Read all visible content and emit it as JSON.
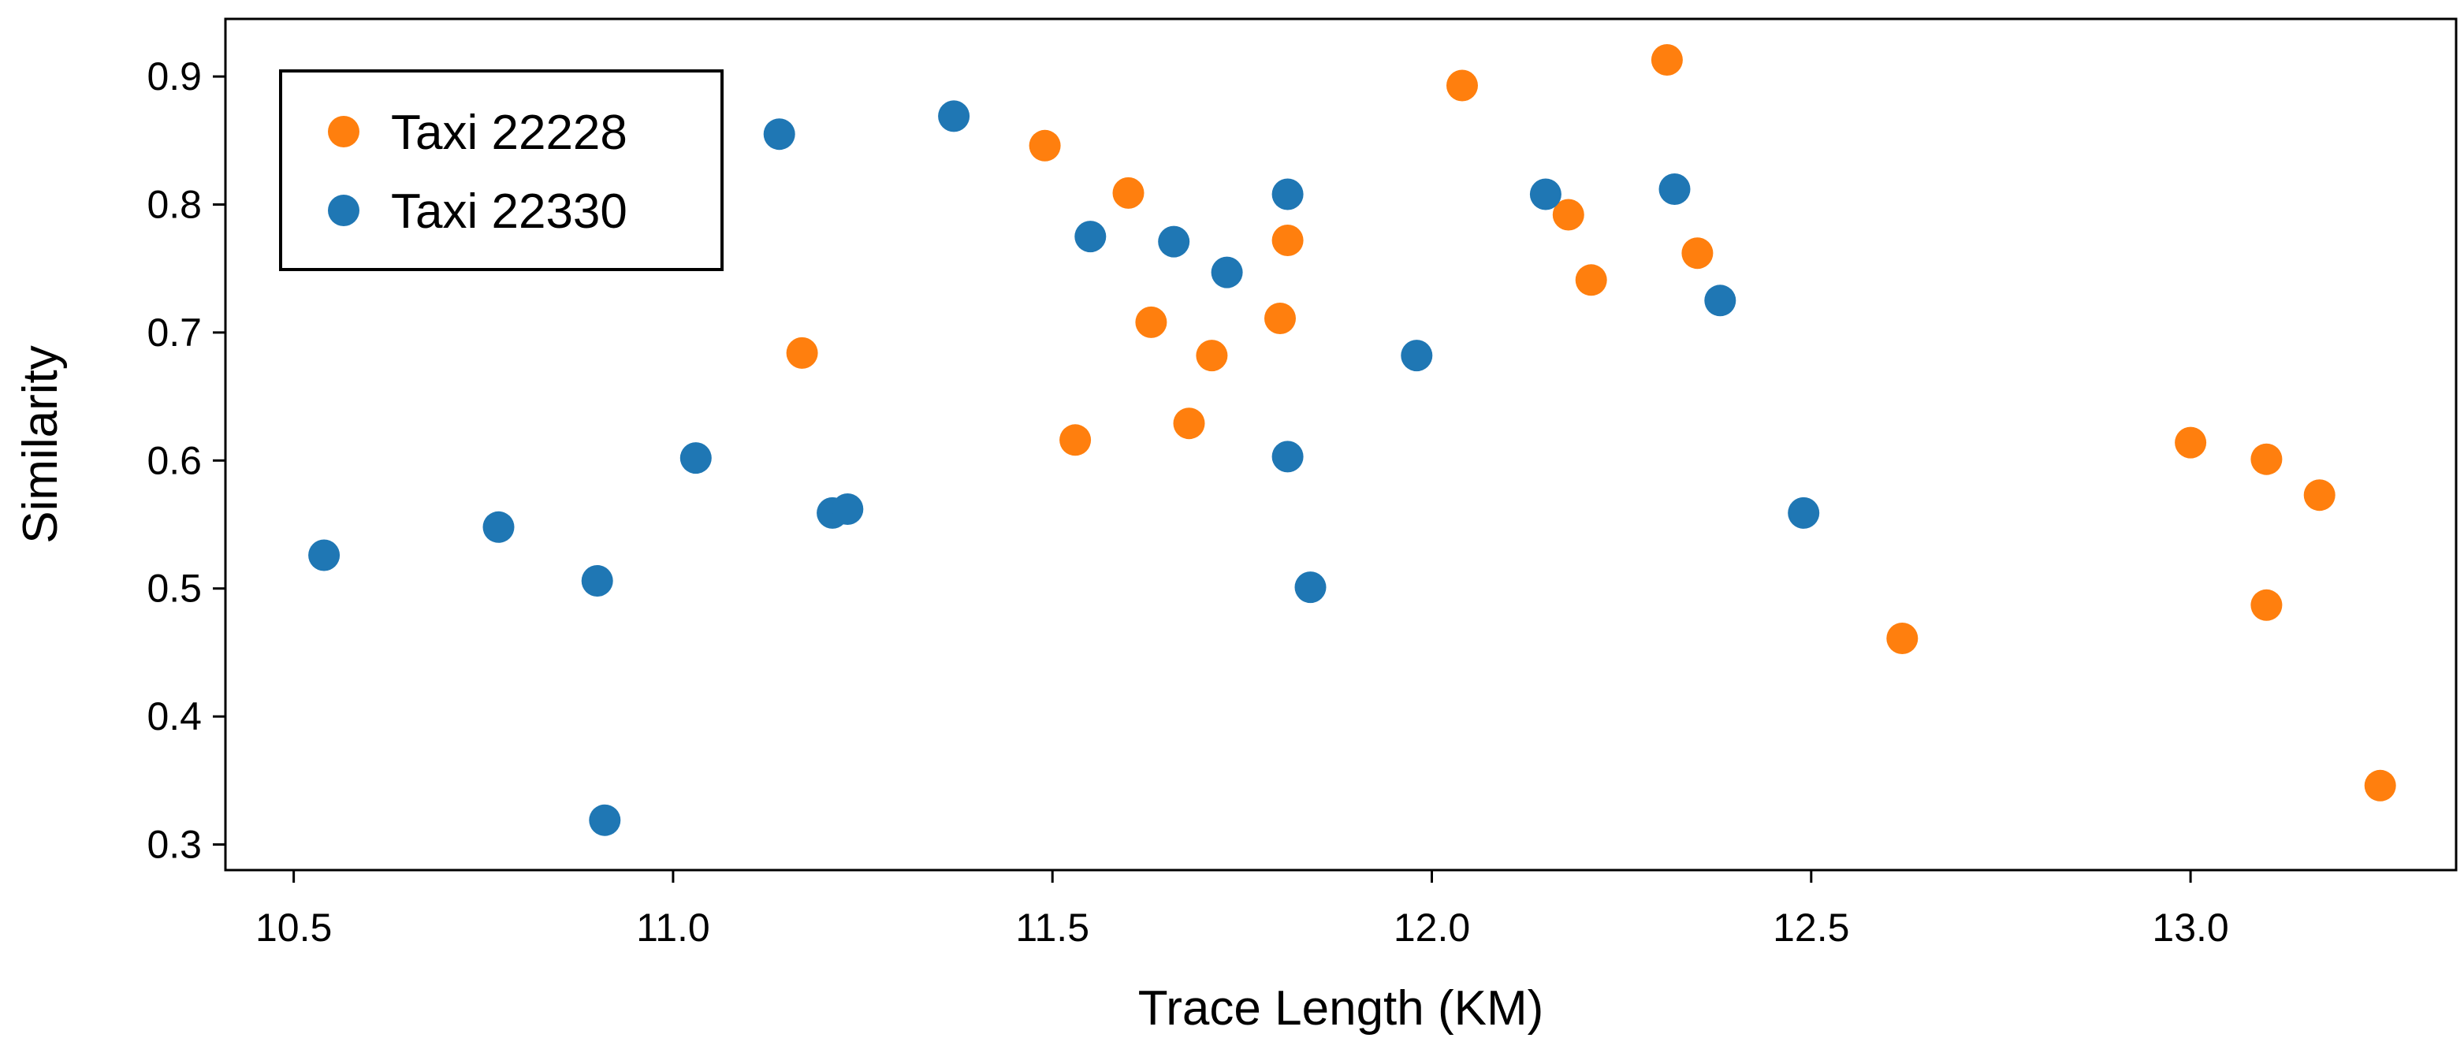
{
  "chart_data": {
    "type": "scatter",
    "title": "",
    "xlabel": "Trace Length (KM)",
    "ylabel": "Similarity",
    "xlim": [
      10.41,
      13.35
    ],
    "ylim": [
      0.28,
      0.945
    ],
    "xticks": [
      10.5,
      11.0,
      11.5,
      12.0,
      12.5,
      13.0
    ],
    "xtick_labels": [
      "10.5",
      "11.0",
      "11.5",
      "12.0",
      "12.5",
      "13.0"
    ],
    "yticks": [
      0.3,
      0.4,
      0.5,
      0.6,
      0.7,
      0.8,
      0.9
    ],
    "ytick_labels": [
      "0.3",
      "0.4",
      "0.5",
      "0.6",
      "0.7",
      "0.8",
      "0.9"
    ],
    "grid": false,
    "legend_position": "top-left",
    "series": [
      {
        "name": "Taxi 22228",
        "color": "#ff7f0e",
        "points": [
          {
            "x": 11.17,
            "y": 0.684
          },
          {
            "x": 11.49,
            "y": 0.846
          },
          {
            "x": 11.53,
            "y": 0.616
          },
          {
            "x": 11.6,
            "y": 0.809
          },
          {
            "x": 11.63,
            "y": 0.708
          },
          {
            "x": 11.68,
            "y": 0.629
          },
          {
            "x": 11.71,
            "y": 0.682
          },
          {
            "x": 11.8,
            "y": 0.711
          },
          {
            "x": 11.81,
            "y": 0.772
          },
          {
            "x": 12.04,
            "y": 0.893
          },
          {
            "x": 12.18,
            "y": 0.792
          },
          {
            "x": 12.21,
            "y": 0.741
          },
          {
            "x": 12.31,
            "y": 0.913
          },
          {
            "x": 12.35,
            "y": 0.762
          },
          {
            "x": 12.62,
            "y": 0.461
          },
          {
            "x": 13.0,
            "y": 0.614
          },
          {
            "x": 13.1,
            "y": 0.601
          },
          {
            "x": 13.1,
            "y": 0.487
          },
          {
            "x": 13.17,
            "y": 0.573
          },
          {
            "x": 13.25,
            "y": 0.346
          }
        ]
      },
      {
        "name": "Taxi 22330",
        "color": "#1f77b4",
        "points": [
          {
            "x": 10.54,
            "y": 0.526
          },
          {
            "x": 10.77,
            "y": 0.548
          },
          {
            "x": 10.9,
            "y": 0.506
          },
          {
            "x": 10.91,
            "y": 0.319
          },
          {
            "x": 11.03,
            "y": 0.602
          },
          {
            "x": 11.14,
            "y": 0.855
          },
          {
            "x": 11.21,
            "y": 0.559
          },
          {
            "x": 11.23,
            "y": 0.562
          },
          {
            "x": 11.37,
            "y": 0.869
          },
          {
            "x": 11.55,
            "y": 0.775
          },
          {
            "x": 11.66,
            "y": 0.771
          },
          {
            "x": 11.73,
            "y": 0.747
          },
          {
            "x": 11.81,
            "y": 0.808
          },
          {
            "x": 11.81,
            "y": 0.603
          },
          {
            "x": 11.84,
            "y": 0.501
          },
          {
            "x": 11.98,
            "y": 0.682
          },
          {
            "x": 12.15,
            "y": 0.808
          },
          {
            "x": 12.32,
            "y": 0.812
          },
          {
            "x": 12.38,
            "y": 0.725
          },
          {
            "x": 12.49,
            "y": 0.559
          }
        ]
      }
    ]
  }
}
